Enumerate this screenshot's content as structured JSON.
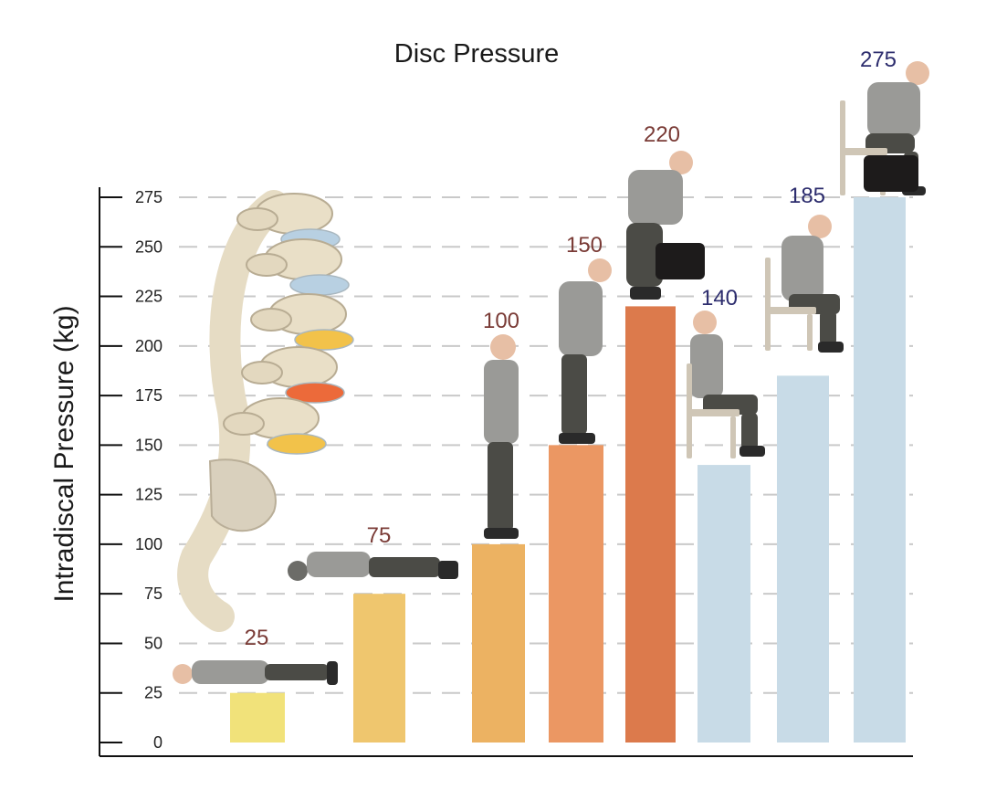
{
  "chart_data": {
    "type": "bar",
    "title": "Disc Pressure",
    "xlabel": "",
    "ylabel": "Intradiscal Pressure (kg)",
    "ylim": [
      0,
      275
    ],
    "yticks": [
      0,
      25,
      50,
      75,
      100,
      125,
      150,
      175,
      200,
      225,
      250,
      275
    ],
    "grid": true,
    "categories": [
      "",
      "",
      "",
      "",
      "",
      "",
      "",
      ""
    ],
    "values": [
      25,
      75,
      100,
      150,
      220,
      140,
      185,
      275
    ],
    "value_labels": [
      "25",
      "75",
      "100",
      "150",
      "220",
      "140",
      "185",
      "275"
    ],
    "bar_colors": [
      "#f1e27a",
      "#efc66e",
      "#ecb262",
      "#eb9763",
      "#dc7a4c",
      "#c8dbe7",
      "#c8dbe7",
      "#c8dbe7"
    ],
    "label_colors": [
      "#7a3b36",
      "#7a3b36",
      "#7a3b36",
      "#7a3b36",
      "#7a3b36",
      "#2d2d6e",
      "#2d2d6e",
      "#2d2d6e"
    ],
    "illustrations": [
      "lying-supine-figure",
      "lying-prone-figure",
      "standing-figure",
      "bending-forward-figure",
      "squat-lifting-figure",
      "sitting-upright-figure",
      "sitting-leaning-figure",
      "sitting-lifting-figure"
    ],
    "side_illustration": "lumbar-spine-illustration"
  }
}
